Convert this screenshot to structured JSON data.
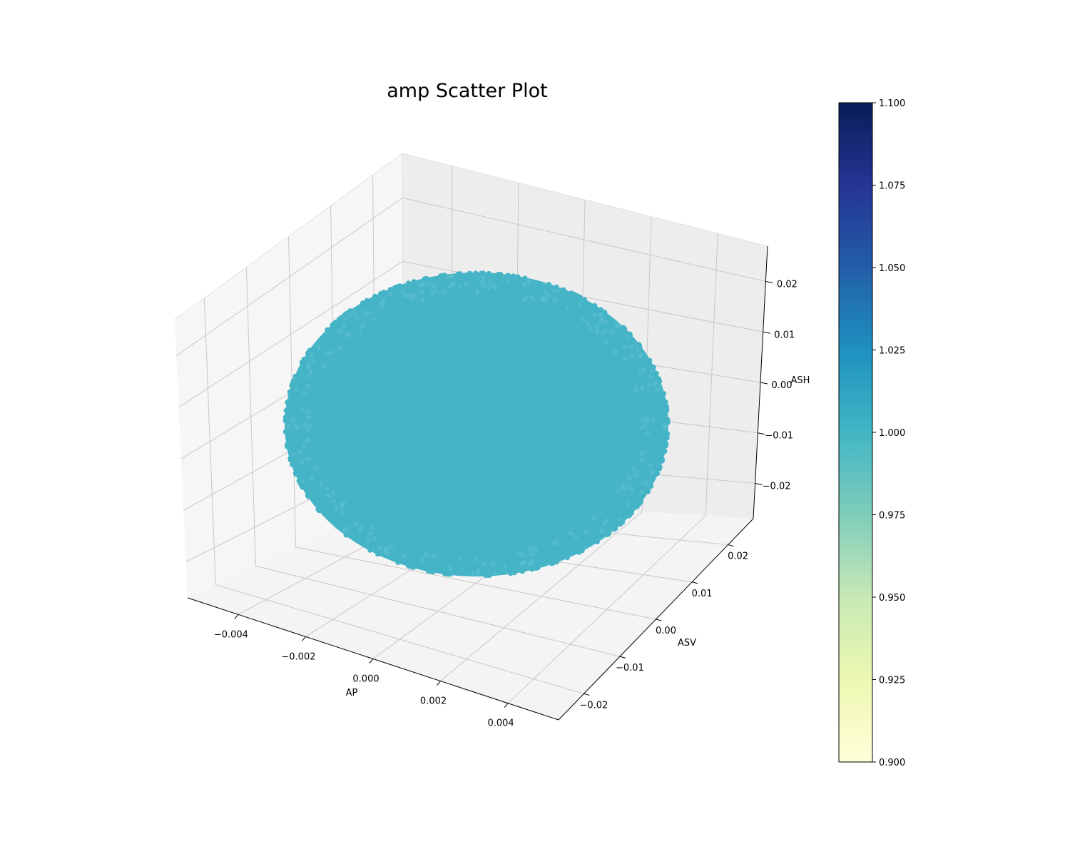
{
  "chart_data": {
    "type": "scatter",
    "projection": "3d",
    "title": "amp Scatter Plot",
    "xlabel": "AP",
    "ylabel": "ASV",
    "zlabel": "ASH",
    "xlim": [
      -0.0055,
      0.0055
    ],
    "ylim": [
      -0.027,
      0.027
    ],
    "zlim": [
      -0.027,
      0.027
    ],
    "x_ticks": [
      {
        "value": -0.004,
        "label": "−0.004"
      },
      {
        "value": -0.002,
        "label": "−0.002"
      },
      {
        "value": 0.0,
        "label": "0.000"
      },
      {
        "value": 0.002,
        "label": "0.002"
      },
      {
        "value": 0.004,
        "label": "0.004"
      }
    ],
    "y_ticks": [
      {
        "value": -0.02,
        "label": "−0.02"
      },
      {
        "value": -0.01,
        "label": "−0.01"
      },
      {
        "value": 0.0,
        "label": "0.00"
      },
      {
        "value": 0.01,
        "label": "0.01"
      },
      {
        "value": 0.02,
        "label": "0.02"
      }
    ],
    "z_ticks": [
      {
        "value": -0.02,
        "label": "−0.02"
      },
      {
        "value": -0.01,
        "label": "−0.01"
      },
      {
        "value": 0.0,
        "label": "0.00"
      },
      {
        "value": 0.01,
        "label": "0.01"
      },
      {
        "value": 0.02,
        "label": "0.02"
      }
    ],
    "series": [
      {
        "shape": "ellipsoid",
        "center": [
          0,
          0,
          0
        ],
        "semi_axes": [
          0.005,
          0.025,
          0.025
        ],
        "color_value": 1.0,
        "color": "#45b4c6"
      }
    ],
    "colorbar": {
      "colormap": "YlGnBu",
      "range": [
        0.9,
        1.1
      ],
      "ticks": [
        "0.900",
        "0.925",
        "0.950",
        "0.975",
        "1.000",
        "1.025",
        "1.050",
        "1.075",
        "1.100"
      ],
      "stops": [
        "#ffffd9",
        "#edf8b1",
        "#c7e9b4",
        "#7fcdbb",
        "#41b6c4",
        "#1d91c0",
        "#225ea8",
        "#253494",
        "#081d58"
      ]
    },
    "grid": true,
    "pane_color": "#f2f2f2"
  }
}
